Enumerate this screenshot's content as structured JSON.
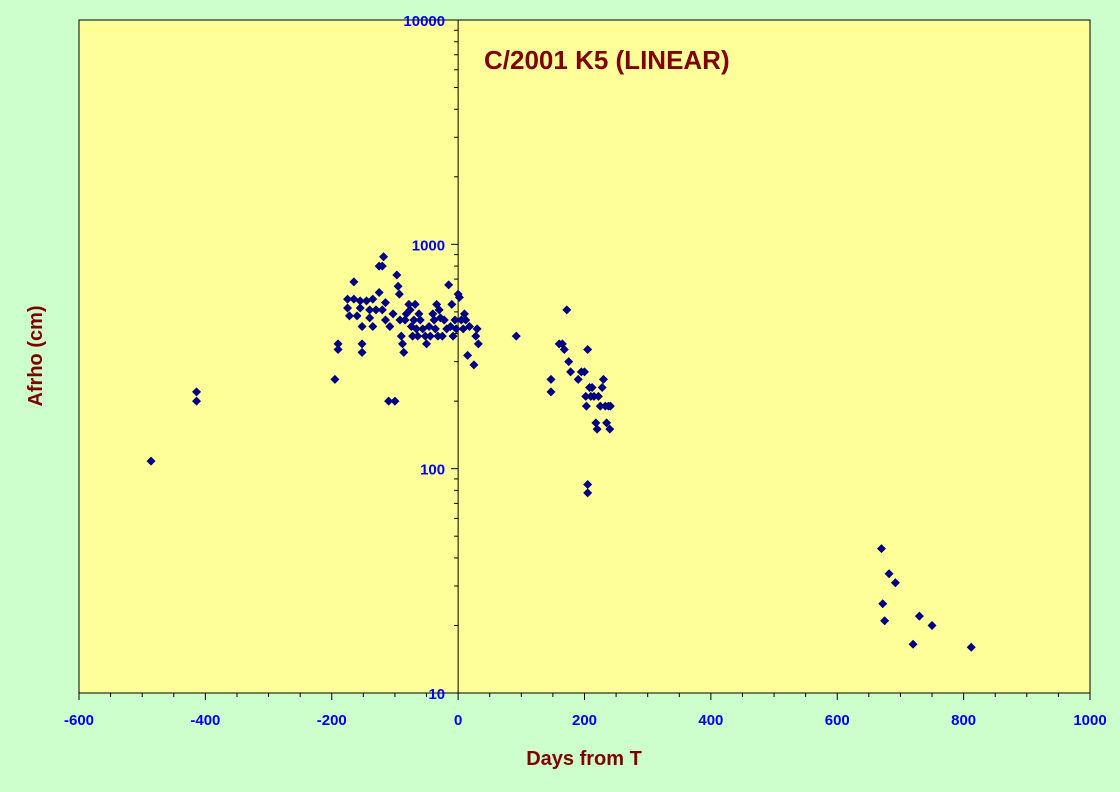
{
  "chart_data": {
    "type": "scatter",
    "title": "C/2001 K5 (LINEAR)",
    "xlabel": "Days from T",
    "ylabel": "Afrho (cm)",
    "xlim": [
      -600,
      1000
    ],
    "ylim": [
      10,
      10000
    ],
    "yscale": "log",
    "x_ticks": [
      "-600",
      "-400",
      "-200",
      "0",
      "200",
      "400",
      "600",
      "800",
      "1000"
    ],
    "y_ticks": [
      "10",
      "100",
      "1000",
      "10000"
    ],
    "grid": false,
    "legend": "none",
    "colors": {
      "background": "#ccffcc",
      "plot_area": "#ffff99",
      "marker": "#000080",
      "tick_labels": "#0000ee",
      "titles": "#800000"
    },
    "points": [
      [
        -486,
        108
      ],
      [
        -414,
        220
      ],
      [
        -414,
        200
      ],
      [
        -195,
        250
      ],
      [
        -190,
        360
      ],
      [
        -190,
        340
      ],
      [
        -175,
        570
      ],
      [
        -175,
        520
      ],
      [
        -172,
        480
      ],
      [
        -165,
        680
      ],
      [
        -165,
        570
      ],
      [
        -160,
        480
      ],
      [
        -155,
        560
      ],
      [
        -155,
        520
      ],
      [
        -152,
        430
      ],
      [
        -152,
        360
      ],
      [
        -152,
        330
      ],
      [
        -145,
        560
      ],
      [
        -140,
        470
      ],
      [
        -140,
        510
      ],
      [
        -135,
        430
      ],
      [
        -135,
        570
      ],
      [
        -130,
        510
      ],
      [
        -125,
        610
      ],
      [
        -125,
        800
      ],
      [
        -120,
        800
      ],
      [
        -120,
        510
      ],
      [
        -118,
        880
      ],
      [
        -115,
        550
      ],
      [
        -115,
        460
      ],
      [
        -110,
        200
      ],
      [
        -108,
        430
      ],
      [
        -103,
        490
      ],
      [
        -100,
        200
      ],
      [
        -97,
        730
      ],
      [
        -95,
        650
      ],
      [
        -93,
        600
      ],
      [
        -92,
        460
      ],
      [
        -90,
        390
      ],
      [
        -88,
        360
      ],
      [
        -86,
        330
      ],
      [
        -84,
        460
      ],
      [
        -82,
        490
      ],
      [
        -78,
        540
      ],
      [
        -76,
        510
      ],
      [
        -74,
        430
      ],
      [
        -72,
        390
      ],
      [
        -70,
        460
      ],
      [
        -68,
        540
      ],
      [
        -66,
        420
      ],
      [
        -64,
        390
      ],
      [
        -62,
        490
      ],
      [
        -60,
        460
      ],
      [
        -56,
        420
      ],
      [
        -52,
        390
      ],
      [
        -50,
        360
      ],
      [
        -46,
        430
      ],
      [
        -44,
        390
      ],
      [
        -40,
        490
      ],
      [
        -38,
        460
      ],
      [
        -36,
        420
      ],
      [
        -34,
        540
      ],
      [
        -32,
        390
      ],
      [
        -30,
        510
      ],
      [
        -28,
        470
      ],
      [
        -25,
        390
      ],
      [
        -22,
        460
      ],
      [
        -18,
        420
      ],
      [
        -15,
        660
      ],
      [
        -12,
        430
      ],
      [
        -10,
        540
      ],
      [
        -8,
        390
      ],
      [
        -5,
        460
      ],
      [
        -3,
        420
      ],
      [
        0,
        600
      ],
      [
        2,
        580
      ],
      [
        5,
        460
      ],
      [
        8,
        420
      ],
      [
        10,
        490
      ],
      [
        12,
        460
      ],
      [
        15,
        320
      ],
      [
        18,
        430
      ],
      [
        25,
        290
      ],
      [
        28,
        390
      ],
      [
        30,
        420
      ],
      [
        32,
        360
      ],
      [
        92,
        390
      ],
      [
        147,
        250
      ],
      [
        147,
        220
      ],
      [
        160,
        360
      ],
      [
        165,
        360
      ],
      [
        168,
        340
      ],
      [
        172,
        510
      ],
      [
        175,
        300
      ],
      [
        178,
        270
      ],
      [
        190,
        250
      ],
      [
        195,
        270
      ],
      [
        200,
        270
      ],
      [
        202,
        210
      ],
      [
        203,
        190
      ],
      [
        205,
        340
      ],
      [
        205,
        85
      ],
      [
        205,
        78
      ],
      [
        208,
        230
      ],
      [
        210,
        210
      ],
      [
        212,
        230
      ],
      [
        215,
        210
      ],
      [
        218,
        160
      ],
      [
        220,
        150
      ],
      [
        222,
        210
      ],
      [
        225,
        190
      ],
      [
        228,
        230
      ],
      [
        230,
        250
      ],
      [
        233,
        190
      ],
      [
        235,
        160
      ],
      [
        238,
        190
      ],
      [
        240,
        150
      ],
      [
        241,
        190
      ],
      [
        670,
        44
      ],
      [
        672,
        25
      ],
      [
        675,
        21
      ],
      [
        682,
        34
      ],
      [
        692,
        31
      ],
      [
        720,
        16.5
      ],
      [
        730,
        22
      ],
      [
        750,
        20
      ],
      [
        812,
        16
      ]
    ]
  }
}
